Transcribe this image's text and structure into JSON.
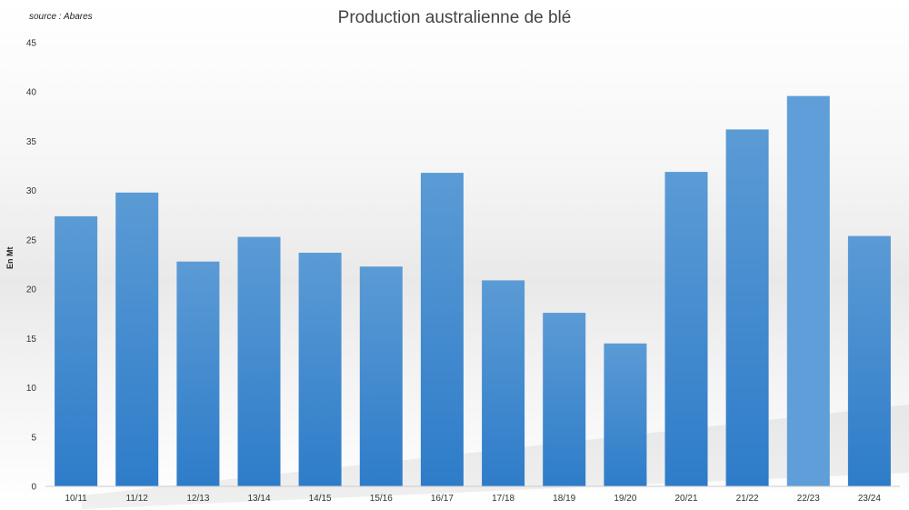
{
  "source_note": "source : Abares",
  "chart_data": {
    "type": "bar",
    "title": "Production australienne de blé",
    "xlabel": "",
    "ylabel": "En Mt",
    "categories": [
      "10/11",
      "11/12",
      "12/13",
      "13/14",
      "14/15",
      "15/16",
      "16/17",
      "17/18",
      "18/19",
      "19/20",
      "20/21",
      "21/22",
      "22/23",
      "23/24"
    ],
    "values": [
      27.4,
      29.8,
      22.8,
      25.3,
      23.7,
      22.3,
      31.8,
      20.9,
      17.6,
      14.5,
      31.9,
      36.2,
      39.6,
      25.4
    ],
    "ylim": [
      0,
      45
    ],
    "yticks": [
      0,
      5,
      10,
      15,
      20,
      25,
      30,
      35,
      40,
      45
    ],
    "grid": false,
    "legend": "none",
    "colors": {
      "bar_top": "#5b9bd5",
      "bar_bottom": "#2e7cc9",
      "highlight_bar": "#5f9ed8",
      "axis": "#cccccc"
    }
  }
}
